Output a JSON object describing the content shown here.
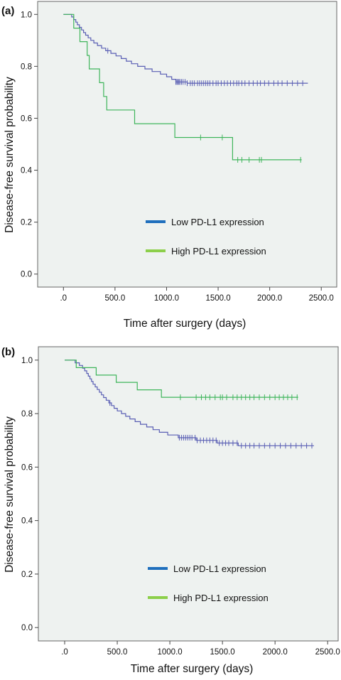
{
  "chart_data": [
    {
      "type": "line",
      "subtype": "kaplan-meier",
      "panel_label": "(a)",
      "xlabel": "Time after surgery (days)",
      "ylabel": "Disease-free survival probability",
      "xlim": [
        -250,
        2650
      ],
      "ylim": [
        -0.05,
        1.05
      ],
      "x_ticks": [
        0,
        500,
        1000,
        1500,
        2000,
        2500
      ],
      "x_tick_labels": [
        ".0",
        "500.0",
        "1000.0",
        "1500.0",
        "2000.0",
        "2500.0"
      ],
      "y_ticks": [
        0,
        0.2,
        0.4,
        0.6,
        0.8,
        1.0
      ],
      "y_tick_labels": [
        "0.0",
        "0.2",
        "0.4",
        "0.6",
        "0.8",
        "1.0"
      ],
      "grid": false,
      "legend_position": "bottom-center",
      "series": [
        {
          "name": "Low PD-L1 expression",
          "color": "#5a5fb4",
          "legend_color": "#1f6fbd",
          "steps": [
            [
              0,
              1.0
            ],
            [
              80,
              0.99
            ],
            [
              100,
              0.98
            ],
            [
              120,
              0.97
            ],
            [
              135,
              0.96
            ],
            [
              155,
              0.95
            ],
            [
              175,
              0.94
            ],
            [
              195,
              0.93
            ],
            [
              215,
              0.92
            ],
            [
              240,
              0.91
            ],
            [
              265,
              0.9
            ],
            [
              295,
              0.89
            ],
            [
              330,
              0.88
            ],
            [
              370,
              0.87
            ],
            [
              410,
              0.86
            ],
            [
              460,
              0.85
            ],
            [
              510,
              0.84
            ],
            [
              560,
              0.83
            ],
            [
              610,
              0.82
            ],
            [
              660,
              0.81
            ],
            [
              720,
              0.8
            ],
            [
              790,
              0.79
            ],
            [
              860,
              0.78
            ],
            [
              940,
              0.77
            ],
            [
              1000,
              0.76
            ],
            [
              1050,
              0.75
            ],
            [
              1090,
              0.74
            ],
            [
              1200,
              0.735
            ],
            [
              1700,
              0.735
            ],
            [
              2370,
              0.735
            ]
          ],
          "censored": [
            430,
            1090,
            1100,
            1110,
            1120,
            1130,
            1145,
            1160,
            1180,
            1200,
            1230,
            1250,
            1270,
            1300,
            1320,
            1340,
            1360,
            1380,
            1400,
            1420,
            1450,
            1480,
            1500,
            1530,
            1560,
            1590,
            1620,
            1650,
            1680,
            1700,
            1730,
            1760,
            1800,
            1840,
            1880,
            1910,
            1950,
            1990,
            2040,
            2080,
            2120,
            2170,
            2220,
            2270,
            2320
          ]
        },
        {
          "name": "High PD-L1 expression",
          "color": "#3fb55b",
          "legend_color": "#8ccf4a",
          "steps": [
            [
              0,
              1.0
            ],
            [
              100,
              0.947
            ],
            [
              160,
              0.895
            ],
            [
              230,
              0.842
            ],
            [
              250,
              0.79
            ],
            [
              350,
              0.737
            ],
            [
              390,
              0.684
            ],
            [
              420,
              0.632
            ],
            [
              690,
              0.579
            ],
            [
              1080,
              0.526
            ],
            [
              1640,
              0.44
            ],
            [
              2310,
              0.44
            ]
          ],
          "censored": [
            1330,
            1540,
            1690,
            1730,
            1800,
            1900,
            1920,
            2300
          ]
        }
      ]
    },
    {
      "type": "line",
      "subtype": "kaplan-meier",
      "panel_label": "(b)",
      "xlabel": "Time after surgery (days)",
      "ylabel": "Disease-free survival probability",
      "xlim": [
        -250,
        2600
      ],
      "ylim": [
        -0.05,
        1.05
      ],
      "x_ticks": [
        0,
        500,
        1000,
        1500,
        2000,
        2500
      ],
      "x_tick_labels": [
        ".0",
        "500.0",
        "1000.0",
        "1500.0",
        "2000.0",
        "2500.0"
      ],
      "y_ticks": [
        0,
        0.2,
        0.4,
        0.6,
        0.8,
        1.0
      ],
      "y_tick_labels": [
        "0.0",
        "0.2",
        "0.4",
        "0.6",
        "0.8",
        "1.0"
      ],
      "grid": false,
      "legend_position": "bottom-center",
      "series": [
        {
          "name": "Low PD-L1 expression",
          "color": "#5a5fb4",
          "legend_color": "#1f6fbd",
          "steps": [
            [
              0,
              1.0
            ],
            [
              100,
              0.99
            ],
            [
              140,
              0.98
            ],
            [
              170,
              0.97
            ],
            [
              190,
              0.96
            ],
            [
              210,
              0.95
            ],
            [
              225,
              0.94
            ],
            [
              240,
              0.93
            ],
            [
              255,
              0.92
            ],
            [
              270,
              0.91
            ],
            [
              290,
              0.9
            ],
            [
              310,
              0.89
            ],
            [
              330,
              0.88
            ],
            [
              350,
              0.87
            ],
            [
              370,
              0.86
            ],
            [
              395,
              0.85
            ],
            [
              420,
              0.84
            ],
            [
              445,
              0.83
            ],
            [
              470,
              0.82
            ],
            [
              500,
              0.81
            ],
            [
              540,
              0.8
            ],
            [
              580,
              0.79
            ],
            [
              620,
              0.78
            ],
            [
              670,
              0.77
            ],
            [
              720,
              0.76
            ],
            [
              780,
              0.75
            ],
            [
              840,
              0.74
            ],
            [
              900,
              0.73
            ],
            [
              980,
              0.72
            ],
            [
              1080,
              0.71
            ],
            [
              1250,
              0.7
            ],
            [
              1450,
              0.69
            ],
            [
              1650,
              0.68
            ],
            [
              2370,
              0.68
            ]
          ],
          "censored": [
            430,
            1090,
            1110,
            1130,
            1150,
            1170,
            1190,
            1210,
            1240,
            1260,
            1290,
            1320,
            1350,
            1380,
            1410,
            1440,
            1470,
            1500,
            1530,
            1560,
            1600,
            1640,
            1680,
            1720,
            1760,
            1800,
            1850,
            1900,
            1950,
            2000,
            2050,
            2100,
            2150,
            2200,
            2250,
            2300,
            2350
          ]
        },
        {
          "name": "High PD-L1 expression",
          "color": "#3fb55b",
          "legend_color": "#8ccf4a",
          "steps": [
            [
              0,
              1.0
            ],
            [
              110,
              0.972
            ],
            [
              300,
              0.944
            ],
            [
              490,
              0.917
            ],
            [
              690,
              0.889
            ],
            [
              920,
              0.861
            ],
            [
              2220,
              0.861
            ]
          ],
          "censored": [
            1100,
            1250,
            1300,
            1340,
            1380,
            1430,
            1480,
            1500,
            1540,
            1600,
            1640,
            1680,
            1720,
            1760,
            1800,
            1850,
            1900,
            1950,
            2000,
            2040,
            2080,
            2120,
            2160,
            2210
          ]
        }
      ]
    }
  ]
}
